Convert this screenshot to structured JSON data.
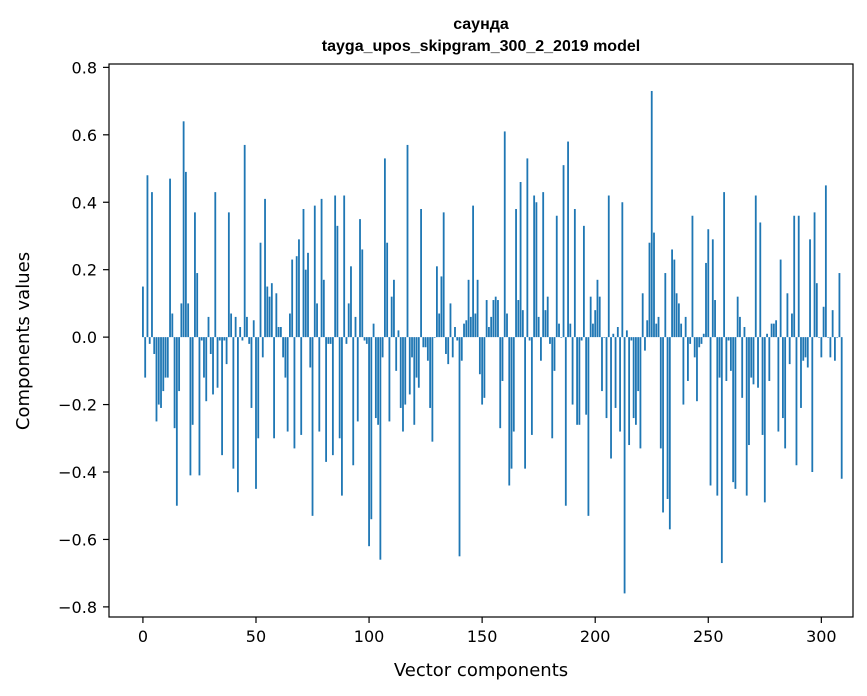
{
  "chart_data": {
    "type": "bar",
    "title_line1": "саунда",
    "title_line2": "tayga_upos_skipgram_300_2_2019 model",
    "xlabel": "Vector components",
    "ylabel": "Components values",
    "xlim": [
      -15,
      314
    ],
    "ylim": [
      -0.83,
      0.81
    ],
    "xticks": [
      0,
      50,
      100,
      150,
      200,
      250,
      300
    ],
    "yticks": [
      -0.8,
      -0.6,
      -0.4,
      -0.2,
      0.0,
      0.2,
      0.4,
      0.6,
      0.8
    ],
    "ytick_labels": [
      "−0.8",
      "−0.6",
      "−0.4",
      "−0.2",
      "0.0",
      "0.2",
      "0.4",
      "0.6",
      "0.8"
    ],
    "xtick_labels": [
      "0",
      "50",
      "100",
      "150",
      "200",
      "250",
      "300"
    ],
    "bar_color": "#1f77b4",
    "grid": false,
    "legend": "none",
    "values": [
      0.15,
      -0.12,
      0.48,
      -0.02,
      0.43,
      -0.05,
      -0.25,
      -0.2,
      -0.21,
      -0.16,
      -0.12,
      -0.12,
      0.47,
      0.07,
      -0.27,
      -0.5,
      -0.16,
      0.1,
      0.64,
      0.49,
      0.1,
      -0.41,
      -0.26,
      0.37,
      0.19,
      -0.41,
      -0.01,
      -0.12,
      -0.19,
      0.06,
      -0.05,
      -0.17,
      0.43,
      -0.15,
      -0.01,
      -0.35,
      -0.01,
      -0.08,
      0.37,
      0.07,
      -0.39,
      0.06,
      -0.46,
      0.03,
      -0.01,
      0.57,
      0.06,
      -0.02,
      -0.21,
      0.05,
      -0.45,
      -0.3,
      0.28,
      -0.06,
      0.41,
      0.15,
      0.12,
      0.16,
      -0.3,
      0.13,
      0.03,
      0.03,
      -0.06,
      -0.12,
      -0.28,
      0.07,
      0.23,
      -0.33,
      0.24,
      0.29,
      -0.29,
      0.38,
      0.2,
      0.25,
      -0.09,
      -0.53,
      0.39,
      0.1,
      -0.28,
      0.41,
      0.17,
      -0.37,
      -0.02,
      -0.02,
      -0.35,
      0.42,
      0.33,
      -0.3,
      -0.47,
      0.42,
      -0.02,
      0.1,
      0.21,
      -0.38,
      0.06,
      -0.25,
      0.35,
      0.26,
      -0.01,
      -0.02,
      -0.62,
      -0.54,
      0.04,
      -0.24,
      -0.26,
      -0.66,
      -0.06,
      0.53,
      0.28,
      -0.25,
      0.12,
      0.17,
      -0.1,
      0.02,
      -0.21,
      -0.28,
      -0.2,
      0.57,
      -0.17,
      -0.06,
      -0.26,
      -0.12,
      -0.15,
      0.38,
      -0.03,
      -0.03,
      -0.07,
      -0.21,
      -0.31,
      0.0,
      0.21,
      0.07,
      0.18,
      0.37,
      -0.05,
      -0.08,
      0.1,
      -0.06,
      0.03,
      -0.01,
      -0.65,
      -0.07,
      0.04,
      0.05,
      0.17,
      0.06,
      0.39,
      0.07,
      0.17,
      -0.11,
      -0.2,
      -0.18,
      0.11,
      0.03,
      0.06,
      0.11,
      0.12,
      0.11,
      -0.27,
      -0.13,
      0.61,
      0.07,
      -0.44,
      -0.39,
      -0.28,
      0.38,
      0.11,
      0.46,
      0.08,
      -0.39,
      0.53,
      -0.01,
      -0.29,
      0.42,
      0.4,
      0.06,
      -0.07,
      0.43,
      0.08,
      0.12,
      -0.02,
      -0.3,
      -0.1,
      0.36,
      0.04,
      0.0,
      0.51,
      -0.5,
      0.58,
      0.04,
      -0.2,
      0.38,
      -0.26,
      -0.26,
      -0.01,
      0.33,
      -0.23,
      -0.53,
      0.12,
      0.04,
      0.08,
      0.17,
      0.12,
      -0.16,
      0.0,
      -0.24,
      0.42,
      -0.36,
      0.01,
      -0.21,
      0.03,
      -0.28,
      0.4,
      -0.76,
      0.02,
      -0.32,
      -0.01,
      -0.24,
      -0.26,
      -0.16,
      -0.33,
      0.13,
      -0.04,
      0.05,
      0.28,
      0.73,
      0.31,
      0.04,
      0.06,
      -0.33,
      -0.52,
      0.19,
      -0.48,
      -0.57,
      0.26,
      0.23,
      0.13,
      0.1,
      0.04,
      -0.2,
      0.06,
      -0.13,
      -0.02,
      0.36,
      -0.06,
      -0.19,
      -0.03,
      -0.02,
      0.01,
      0.22,
      0.32,
      -0.44,
      0.29,
      0.11,
      -0.47,
      -0.12,
      -0.67,
      0.43,
      -0.13,
      -0.01,
      -0.1,
      -0.43,
      -0.45,
      0.12,
      0.06,
      -0.18,
      0.03,
      -0.47,
      -0.32,
      -0.12,
      -0.14,
      0.42,
      -0.15,
      0.34,
      -0.29,
      -0.49,
      0.01,
      -0.13,
      0.04,
      0.04,
      0.05,
      -0.28,
      0.23,
      -0.24,
      -0.33,
      0.13,
      -0.08,
      0.07,
      0.36,
      -0.38,
      0.36,
      -0.21,
      -0.07,
      -0.06,
      -0.09,
      0.29,
      -0.4,
      0.37,
      0.16,
      0.0,
      -0.06,
      0.09,
      0.45,
      0.0,
      -0.06,
      0.08,
      -0.07,
      0.0,
      0.19,
      -0.42
    ]
  }
}
